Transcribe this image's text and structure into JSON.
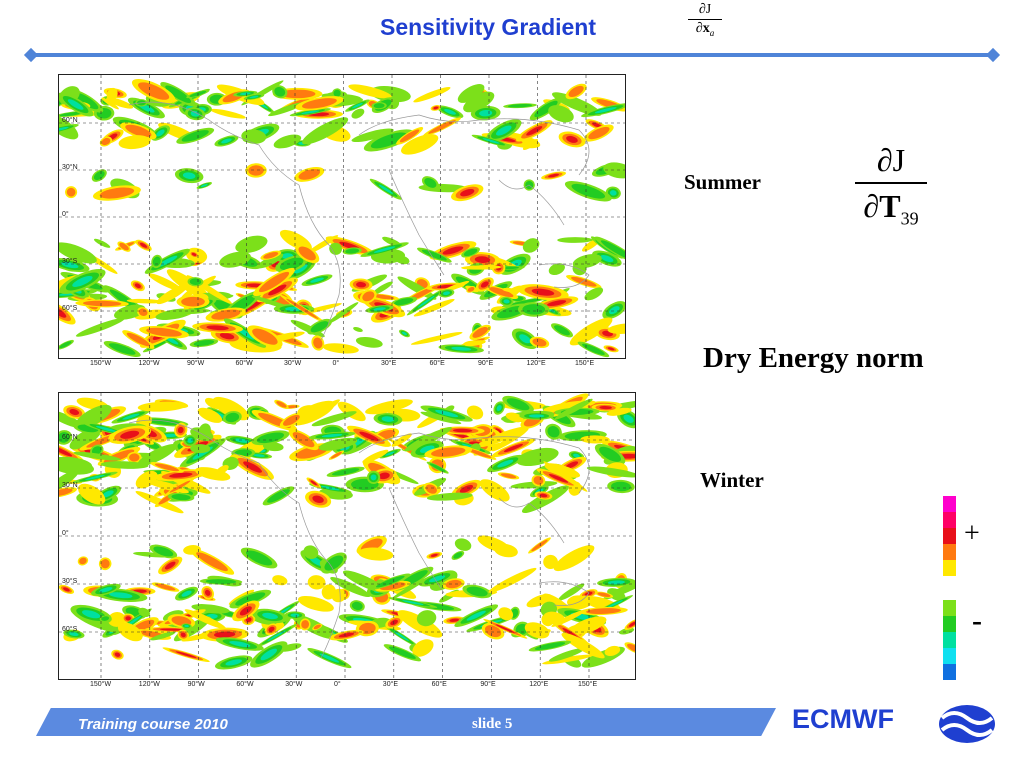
{
  "header": {
    "title": "Sensitivity Gradient",
    "formula_numerator": "∂J",
    "formula_denominator": "∂x",
    "formula_subscript": "a"
  },
  "maps": [
    {
      "season_label": "Summer",
      "lat_labels": [
        "60°N",
        "30°N",
        "0°",
        "30°S",
        "60°S"
      ],
      "lon_labels": [
        "150°W",
        "120°W",
        "90°W",
        "60°W",
        "30°W",
        "0°",
        "30°E",
        "60°E",
        "90°E",
        "120°E",
        "150°E"
      ]
    },
    {
      "season_label": "Winter",
      "lat_labels": [
        "60°N",
        "30°N",
        "0°",
        "30°S",
        "60°S"
      ],
      "lon_labels": [
        "150°W",
        "120°W",
        "90°W",
        "60°W",
        "30°W",
        "0°",
        "30°E",
        "60°E",
        "90°E",
        "120°E",
        "150°E"
      ]
    }
  ],
  "formula": {
    "numerator": "∂J",
    "denominator": "∂T",
    "subscript": "39"
  },
  "norm_label": "Dry Energy norm",
  "colorbar": {
    "plus_label": "+",
    "minus_label": "-",
    "colors": [
      "#ff00cc",
      "#ff0066",
      "#e8101a",
      "#ff7a10",
      "#ffe800",
      "#ffffff",
      "#7ce01a",
      "#22cc22",
      "#00e0a0",
      "#10e0f0",
      "#1070e0"
    ]
  },
  "footer": {
    "course": "Training course  2010",
    "slide": "slide 5",
    "logo": "ECMWF"
  },
  "colors": {
    "title_blue": "#1f3fd0",
    "bar_blue": "#4f84d8",
    "red": "#e8101a",
    "orange": "#ff7a10",
    "yellow": "#ffe800",
    "lightgreen": "#7ce01a",
    "green": "#22cc22"
  }
}
